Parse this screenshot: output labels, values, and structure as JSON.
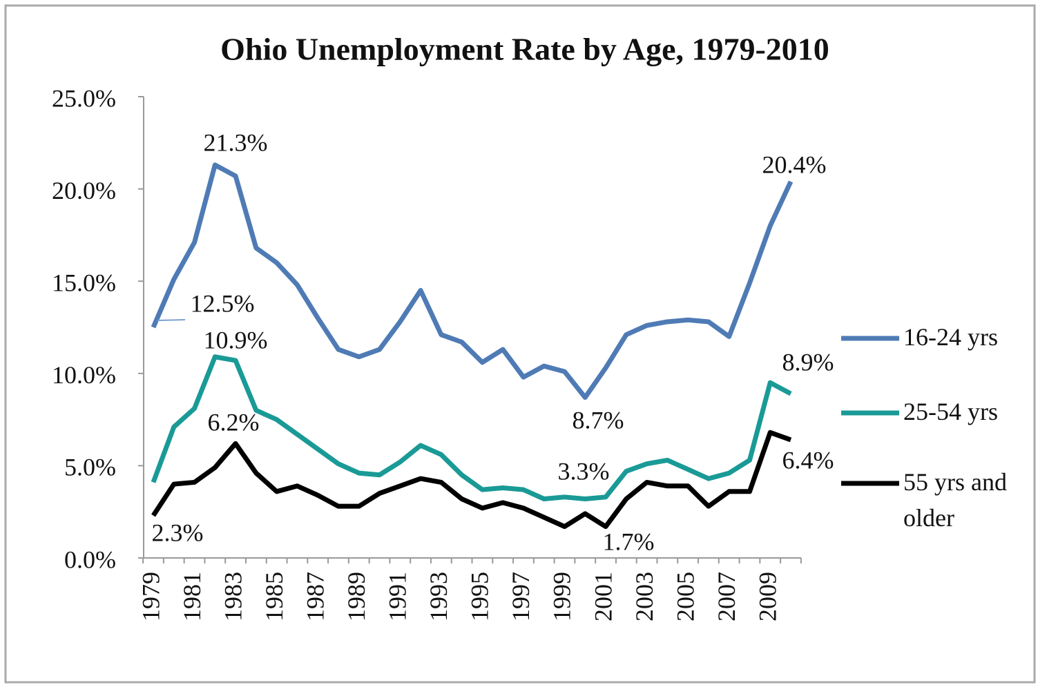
{
  "chart_data": {
    "type": "line",
    "title": "Ohio Unemployment Rate by Age, 1979-2010",
    "categories": [
      "1979",
      null,
      "1981",
      null,
      "1983",
      null,
      "1985",
      null,
      "1987",
      null,
      "1989",
      null,
      "1991",
      null,
      "1993",
      null,
      "1995",
      null,
      "1997",
      null,
      "1999",
      null,
      "2001",
      null,
      "2003",
      null,
      "2005",
      null,
      "2007",
      null,
      "2009",
      null
    ],
    "series": [
      {
        "name": "16-24 yrs",
        "color": "#4f7bb5",
        "values": [
          12.5,
          15.1,
          17.1,
          21.3,
          20.7,
          16.8,
          16.0,
          14.8,
          13.0,
          11.3,
          10.9,
          11.3,
          12.8,
          14.5,
          12.1,
          11.7,
          10.6,
          11.3,
          9.8,
          10.4,
          10.1,
          8.7,
          10.3,
          12.1,
          12.6,
          12.8,
          12.9,
          12.8,
          12.0,
          14.9,
          18.0,
          20.4
        ],
        "value_labels": [
          "12.5%",
          null,
          null,
          "21.3%",
          null,
          null,
          null,
          null,
          null,
          null,
          null,
          null,
          null,
          null,
          null,
          null,
          null,
          null,
          null,
          null,
          null,
          "8.7%",
          null,
          null,
          null,
          null,
          null,
          null,
          null,
          null,
          null,
          "20.4%"
        ]
      },
      {
        "name": "25-54 yrs",
        "color": "#1a9a96",
        "values": [
          4.1,
          7.1,
          8.1,
          10.9,
          10.7,
          8.0,
          7.5,
          6.7,
          5.9,
          5.1,
          4.6,
          4.5,
          5.2,
          6.1,
          5.6,
          4.5,
          3.7,
          3.8,
          3.7,
          3.2,
          3.3,
          3.2,
          3.3,
          4.7,
          5.1,
          5.3,
          4.8,
          4.3,
          4.6,
          5.3,
          9.5,
          8.9
        ],
        "value_labels": [
          null,
          null,
          null,
          "10.9%",
          null,
          null,
          null,
          null,
          null,
          null,
          null,
          null,
          null,
          null,
          null,
          null,
          null,
          null,
          null,
          null,
          "3.3%",
          null,
          null,
          null,
          null,
          null,
          null,
          null,
          null,
          null,
          null,
          "8.9%"
        ]
      },
      {
        "name": "55 yrs and older",
        "color": "#000000",
        "values": [
          2.3,
          4.0,
          4.1,
          4.9,
          6.2,
          4.6,
          3.6,
          3.9,
          3.4,
          2.8,
          2.8,
          3.5,
          3.9,
          4.3,
          4.1,
          3.2,
          2.7,
          3.0,
          2.7,
          2.2,
          1.7,
          2.4,
          1.7,
          3.2,
          4.1,
          3.9,
          3.9,
          2.8,
          3.6,
          3.6,
          6.8,
          6.4
        ],
        "value_labels": [
          "2.3%",
          null,
          null,
          null,
          "6.2%",
          null,
          null,
          null,
          null,
          null,
          null,
          null,
          null,
          null,
          null,
          null,
          null,
          null,
          null,
          null,
          null,
          null,
          "1.7%",
          null,
          null,
          null,
          null,
          null,
          null,
          null,
          null,
          "6.4%"
        ]
      }
    ],
    "ylim": [
      0,
      25
    ],
    "yticks": [
      {
        "value": 0,
        "label": "0.0%"
      },
      {
        "value": 5,
        "label": "5.0%"
      },
      {
        "value": 10,
        "label": "10.0%"
      },
      {
        "value": 15,
        "label": "15.0%"
      },
      {
        "value": 20,
        "label": "20.0%"
      },
      {
        "value": 25,
        "label": "25.0%"
      }
    ],
    "legend": "right"
  }
}
